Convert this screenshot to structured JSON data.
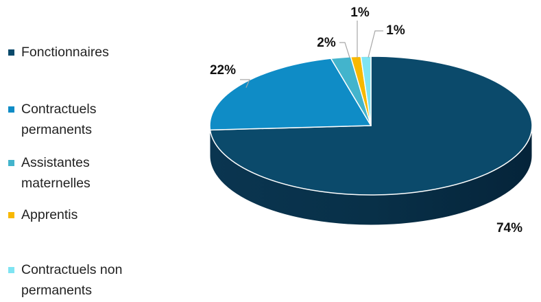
{
  "chart_data": {
    "type": "pie",
    "title": "",
    "legend_position": "left",
    "series": [
      {
        "values": [
          74,
          22,
          2,
          1,
          1
        ],
        "labels": [
          "74%",
          "22%",
          "2%",
          "1%",
          "1%"
        ]
      }
    ],
    "categories": [
      "Fonctionnaires",
      "Contractuels permanents",
      "Assistantes maternelles",
      "Apprentis",
      "Contractuels non permanents"
    ],
    "colors": [
      "#0b4a6b",
      "#0f8cc6",
      "#43b4cc",
      "#f8b800",
      "#7fe4f2"
    ]
  }
}
